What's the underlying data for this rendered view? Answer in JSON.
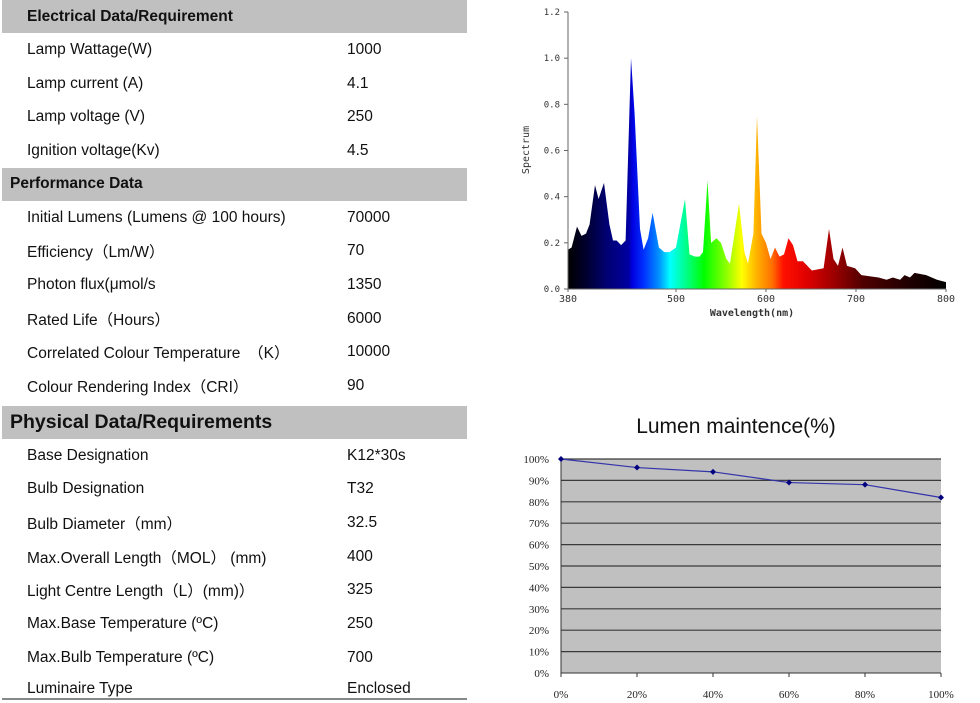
{
  "sections": [
    {
      "title": "Electrical Data/Requirement",
      "indent": true,
      "big": false,
      "rows": [
        {
          "label": "Lamp Wattage(W)",
          "value": "1000"
        },
        {
          "label": "Lamp current (A)",
          "value": "4.1"
        },
        {
          "label": "Lamp voltage (V)",
          "value": "250"
        },
        {
          "label": "Ignition voltage(Kv)",
          "value": "4.5"
        }
      ]
    },
    {
      "title": "Performance Data",
      "indent": false,
      "big": false,
      "rows": [
        {
          "label": "Initial Lumens (Lumens @ 100 hours)",
          "value": "70000"
        },
        {
          "label": "Efficiency（Lm/W）",
          "value": "70"
        },
        {
          "label": "Photon flux(μmol/s",
          "value": "1350"
        },
        {
          "label": "Rated Life（Hours）",
          "value": "6000"
        },
        {
          "label": "Correlated Colour Temperature　（K）",
          "value": "10000"
        },
        {
          "label": "Colour Rendering Index（CRI）",
          "value": "90"
        }
      ]
    },
    {
      "title": "Physical Data/Requirements",
      "indent": false,
      "big": true,
      "rows": [
        {
          "label": "Base Designation",
          "value": "K12*30s"
        },
        {
          "label": "Bulb Designation",
          "value": "T32"
        },
        {
          "label": "Bulb Diameter（mm）",
          "value": "32.5"
        },
        {
          "label": "Max.Overall Length（MOL） (mm)",
          "value": "400"
        },
        {
          "label": "Light Centre Length（L）(mm)）",
          "value": "325"
        },
        {
          "label": "Max.Base Temperature (ºC)",
          "value": "250"
        },
        {
          "label": "Max.Bulb Temperature (ºC)",
          "value": "700"
        },
        {
          "label": "Luminaire Type",
          "value": "Enclosed"
        }
      ]
    }
  ],
  "chart_data": [
    {
      "type": "area",
      "title": "",
      "xlabel": "Wavelength(nm)",
      "ylabel": "Spectrum",
      "xlim": [
        380,
        800
      ],
      "ylim": [
        0,
        1.2
      ],
      "xticks": [
        "380",
        "500",
        "600",
        "700",
        "800"
      ],
      "xtick_values": [
        380,
        500,
        600,
        700,
        800
      ],
      "yticks": [
        "0.0",
        "0.2",
        "0.4",
        "0.6",
        "0.8",
        "1.0",
        "1.2"
      ],
      "x": [
        380,
        384,
        390,
        395,
        400,
        404,
        410,
        414,
        420,
        426,
        430,
        434,
        439,
        444,
        450,
        454,
        460,
        464,
        469,
        474,
        481,
        487,
        493,
        500,
        510,
        515,
        521,
        526,
        530,
        535,
        539,
        545,
        550,
        556,
        560,
        570,
        576,
        580,
        586,
        590,
        595,
        600,
        605,
        610,
        615,
        620,
        625,
        630,
        635,
        641,
        651,
        664,
        670,
        675,
        680,
        685,
        690,
        699,
        706,
        725,
        734,
        741,
        749,
        754,
        760,
        765,
        778,
        790,
        800
      ],
      "y": [
        0.17,
        0.18,
        0.27,
        0.23,
        0.24,
        0.28,
        0.45,
        0.39,
        0.46,
        0.28,
        0.21,
        0.21,
        0.19,
        0.21,
        1.0,
        0.76,
        0.26,
        0.17,
        0.22,
        0.33,
        0.18,
        0.16,
        0.16,
        0.18,
        0.39,
        0.15,
        0.14,
        0.14,
        0.16,
        0.47,
        0.2,
        0.22,
        0.2,
        0.13,
        0.11,
        0.37,
        0.16,
        0.11,
        0.24,
        0.75,
        0.24,
        0.2,
        0.13,
        0.18,
        0.14,
        0.15,
        0.22,
        0.19,
        0.12,
        0.12,
        0.08,
        0.09,
        0.26,
        0.13,
        0.1,
        0.18,
        0.1,
        0.09,
        0.06,
        0.05,
        0.04,
        0.05,
        0.04,
        0.06,
        0.05,
        0.07,
        0.06,
        0.04,
        0.03
      ],
      "fill": "visible-spectrum gradient"
    },
    {
      "type": "line",
      "title": "Lumen maintence(%)",
      "xlabel": "",
      "ylabel": "",
      "categories": [
        "0%",
        "20%",
        "40%",
        "60%",
        "80%",
        "100%"
      ],
      "x": [
        0,
        20,
        40,
        60,
        80,
        100
      ],
      "values": [
        100,
        96,
        94,
        89,
        88,
        82
      ],
      "ylim": [
        0,
        100
      ],
      "yticks": [
        "0%",
        "10%",
        "20%",
        "30%",
        "40%",
        "50%",
        "60%",
        "70%",
        "80%",
        "90%",
        "100%"
      ],
      "line_color": "#3333aa",
      "marker_color": "#000080",
      "plot_bg": "#c0c0c0",
      "grid": true
    }
  ]
}
